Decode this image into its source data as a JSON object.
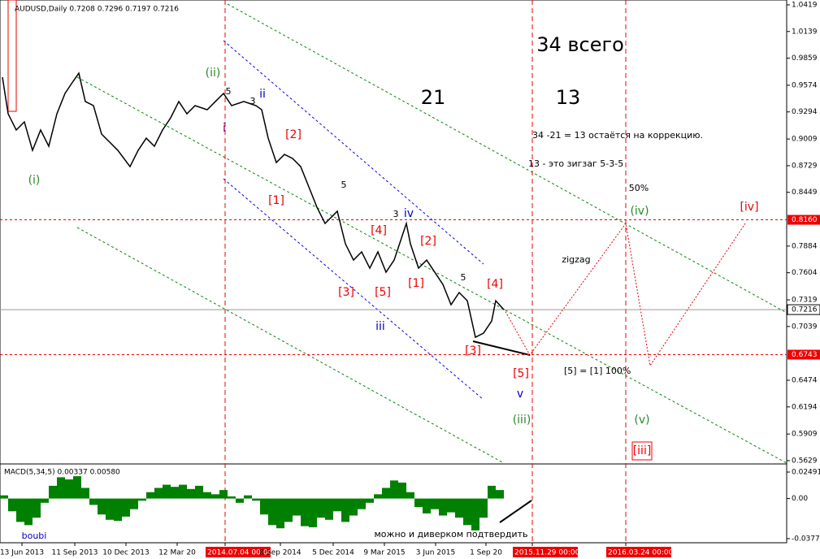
{
  "chart_data": {
    "type": "line",
    "title": "AUDUSD,Daily  0.7208 0.7296 0.7197 0.7216",
    "color": "#000000",
    "x": [
      3,
      10,
      20,
      30,
      40,
      50,
      60,
      70,
      80,
      90,
      97,
      105,
      115,
      125,
      135,
      145,
      160,
      170,
      180,
      190,
      200,
      210,
      220,
      230,
      240,
      255,
      265,
      275,
      285,
      300,
      315,
      322,
      330,
      340,
      350,
      360,
      370,
      380,
      390,
      400,
      410,
      415,
      425,
      435,
      445,
      455,
      465,
      475,
      485,
      495,
      500,
      505,
      515,
      525,
      535,
      545,
      555,
      565,
      575,
      585,
      595,
      605,
      610,
      620
    ],
    "values": [
      0.9659,
      0.9274,
      0.9104,
      0.9189,
      0.889,
      0.9104,
      0.8933,
      0.9274,
      0.9488,
      0.9616,
      0.9701,
      0.9403,
      0.936,
      0.9061,
      0.8976,
      0.889,
      0.8719,
      0.889,
      0.9018,
      0.8933,
      0.9104,
      0.9232,
      0.9403,
      0.9274,
      0.936,
      0.9317,
      0.9403,
      0.9488,
      0.936,
      0.9403,
      0.936,
      0.9317,
      0.9018,
      0.8762,
      0.8847,
      0.8805,
      0.8719,
      0.8506,
      0.8292,
      0.8122,
      0.8207,
      0.825,
      0.7908,
      0.7737,
      0.7823,
      0.7652,
      0.7823,
      0.7609,
      0.7737,
      0.7994,
      0.8122,
      0.7908,
      0.7652,
      0.7737,
      0.7609,
      0.7481,
      0.7268,
      0.7396,
      0.731,
      0.6926,
      0.6969,
      0.7097,
      0.731,
      0.7216
    ],
    "xlim": [
      0,
      968
    ],
    "ylim": [
      0.5603,
      1.047
    ],
    "yticks": [
      1.0419,
      1.0139,
      0.9859,
      0.9574,
      0.9294,
      0.9009,
      0.8729,
      0.8449,
      0.7884,
      0.7604,
      0.7319,
      0.7039,
      0.6474,
      0.6194,
      0.5909,
      0.5629
    ],
    "levels": [
      {
        "value": 0.816,
        "label": "0.8160"
      },
      {
        "value": 0.6743,
        "label": "0.6743"
      }
    ],
    "current": 0.7216,
    "xticks": [
      {
        "value": 27,
        "label": "13 Jun 2013"
      },
      {
        "value": 92,
        "label": "11 Sep 2013"
      },
      {
        "value": 155,
        "label": "10 Dec 2013"
      },
      {
        "value": 218,
        "label": "12 Mar 20"
      },
      {
        "value": 277,
        "label": "2014.07.04 00:00"
      },
      {
        "value": 345,
        "label": "8 Sep 2014"
      },
      {
        "value": 410,
        "label": "5 Dec 2014"
      },
      {
        "value": 473,
        "label": "9 Mar 2015"
      },
      {
        "value": 536,
        "label": "3 Jun 2015"
      },
      {
        "value": 598,
        "label": "1 Sep 20"
      },
      {
        "value": 655,
        "label": "2015.11.29 00:00"
      },
      {
        "value": 770,
        "label": "2016.03.24 00:00"
      }
    ],
    "annotations": [
      "(ii)",
      "(i)",
      "i",
      "ii",
      "5",
      "3",
      "[2]",
      "[1]",
      "5",
      "[4]",
      "3",
      "iv",
      "[2]",
      "[3]",
      "[5]",
      "[1]",
      "iii",
      "5",
      "[4]",
      "[3]",
      "[5]",
      "v",
      "(iii)",
      "21",
      "13",
      "34 всего",
      "34 -21 = 13 остаётся на коррекцию.",
      "13 - это зигзаг 5-3-5",
      "50%",
      "(iv)",
      "[iv]",
      "zigzag",
      "[5] = [1] 100%",
      "(v)",
      "[iii]",
      "boubi",
      "можно и диверком подтвердить"
    ],
    "macd": {
      "title": "MACD(5,34,5) 0.00337 0.00580",
      "color": "#008000",
      "x": [
        5,
        15,
        25,
        35,
        45,
        55,
        65,
        75,
        85,
        95,
        105,
        115,
        125,
        135,
        145,
        155,
        165,
        175,
        185,
        195,
        205,
        215,
        225,
        235,
        245,
        255,
        265,
        275,
        285,
        295,
        305,
        315,
        325,
        335,
        345,
        355,
        365,
        375,
        385,
        395,
        405,
        415,
        425,
        435,
        445,
        455,
        465,
        475,
        485,
        495,
        505,
        515,
        525,
        535,
        545,
        555,
        565,
        575,
        585,
        595,
        605,
        615
      ],
      "values": [
        0.003,
        -0.012,
        -0.022,
        -0.025,
        -0.018,
        -0.004,
        0.012,
        0.02,
        0.018,
        0.021,
        0.01,
        -0.006,
        -0.015,
        -0.02,
        -0.021,
        -0.017,
        -0.01,
        -0.002,
        0.006,
        0.01,
        0.013,
        0.011,
        0.013,
        0.009,
        0.012,
        0.006,
        0.004,
        0.008,
        0.002,
        -0.004,
        0.003,
        -0.002,
        -0.015,
        -0.025,
        -0.028,
        -0.022,
        -0.016,
        -0.026,
        -0.027,
        -0.018,
        -0.02,
        -0.012,
        -0.022,
        -0.016,
        -0.01,
        -0.004,
        0.004,
        0.01,
        0.017,
        0.015,
        0.006,
        -0.008,
        -0.014,
        -0.01,
        -0.016,
        -0.013,
        -0.018,
        -0.025,
        -0.03,
        -0.018,
        0.012,
        0.008
      ],
      "ylim": [
        -0.0416,
        0.0295
      ],
      "yticks": [
        0.02491,
        {
          "value": 0,
          "label": "0.00"
        },
        -0.03773
      ]
    }
  }
}
